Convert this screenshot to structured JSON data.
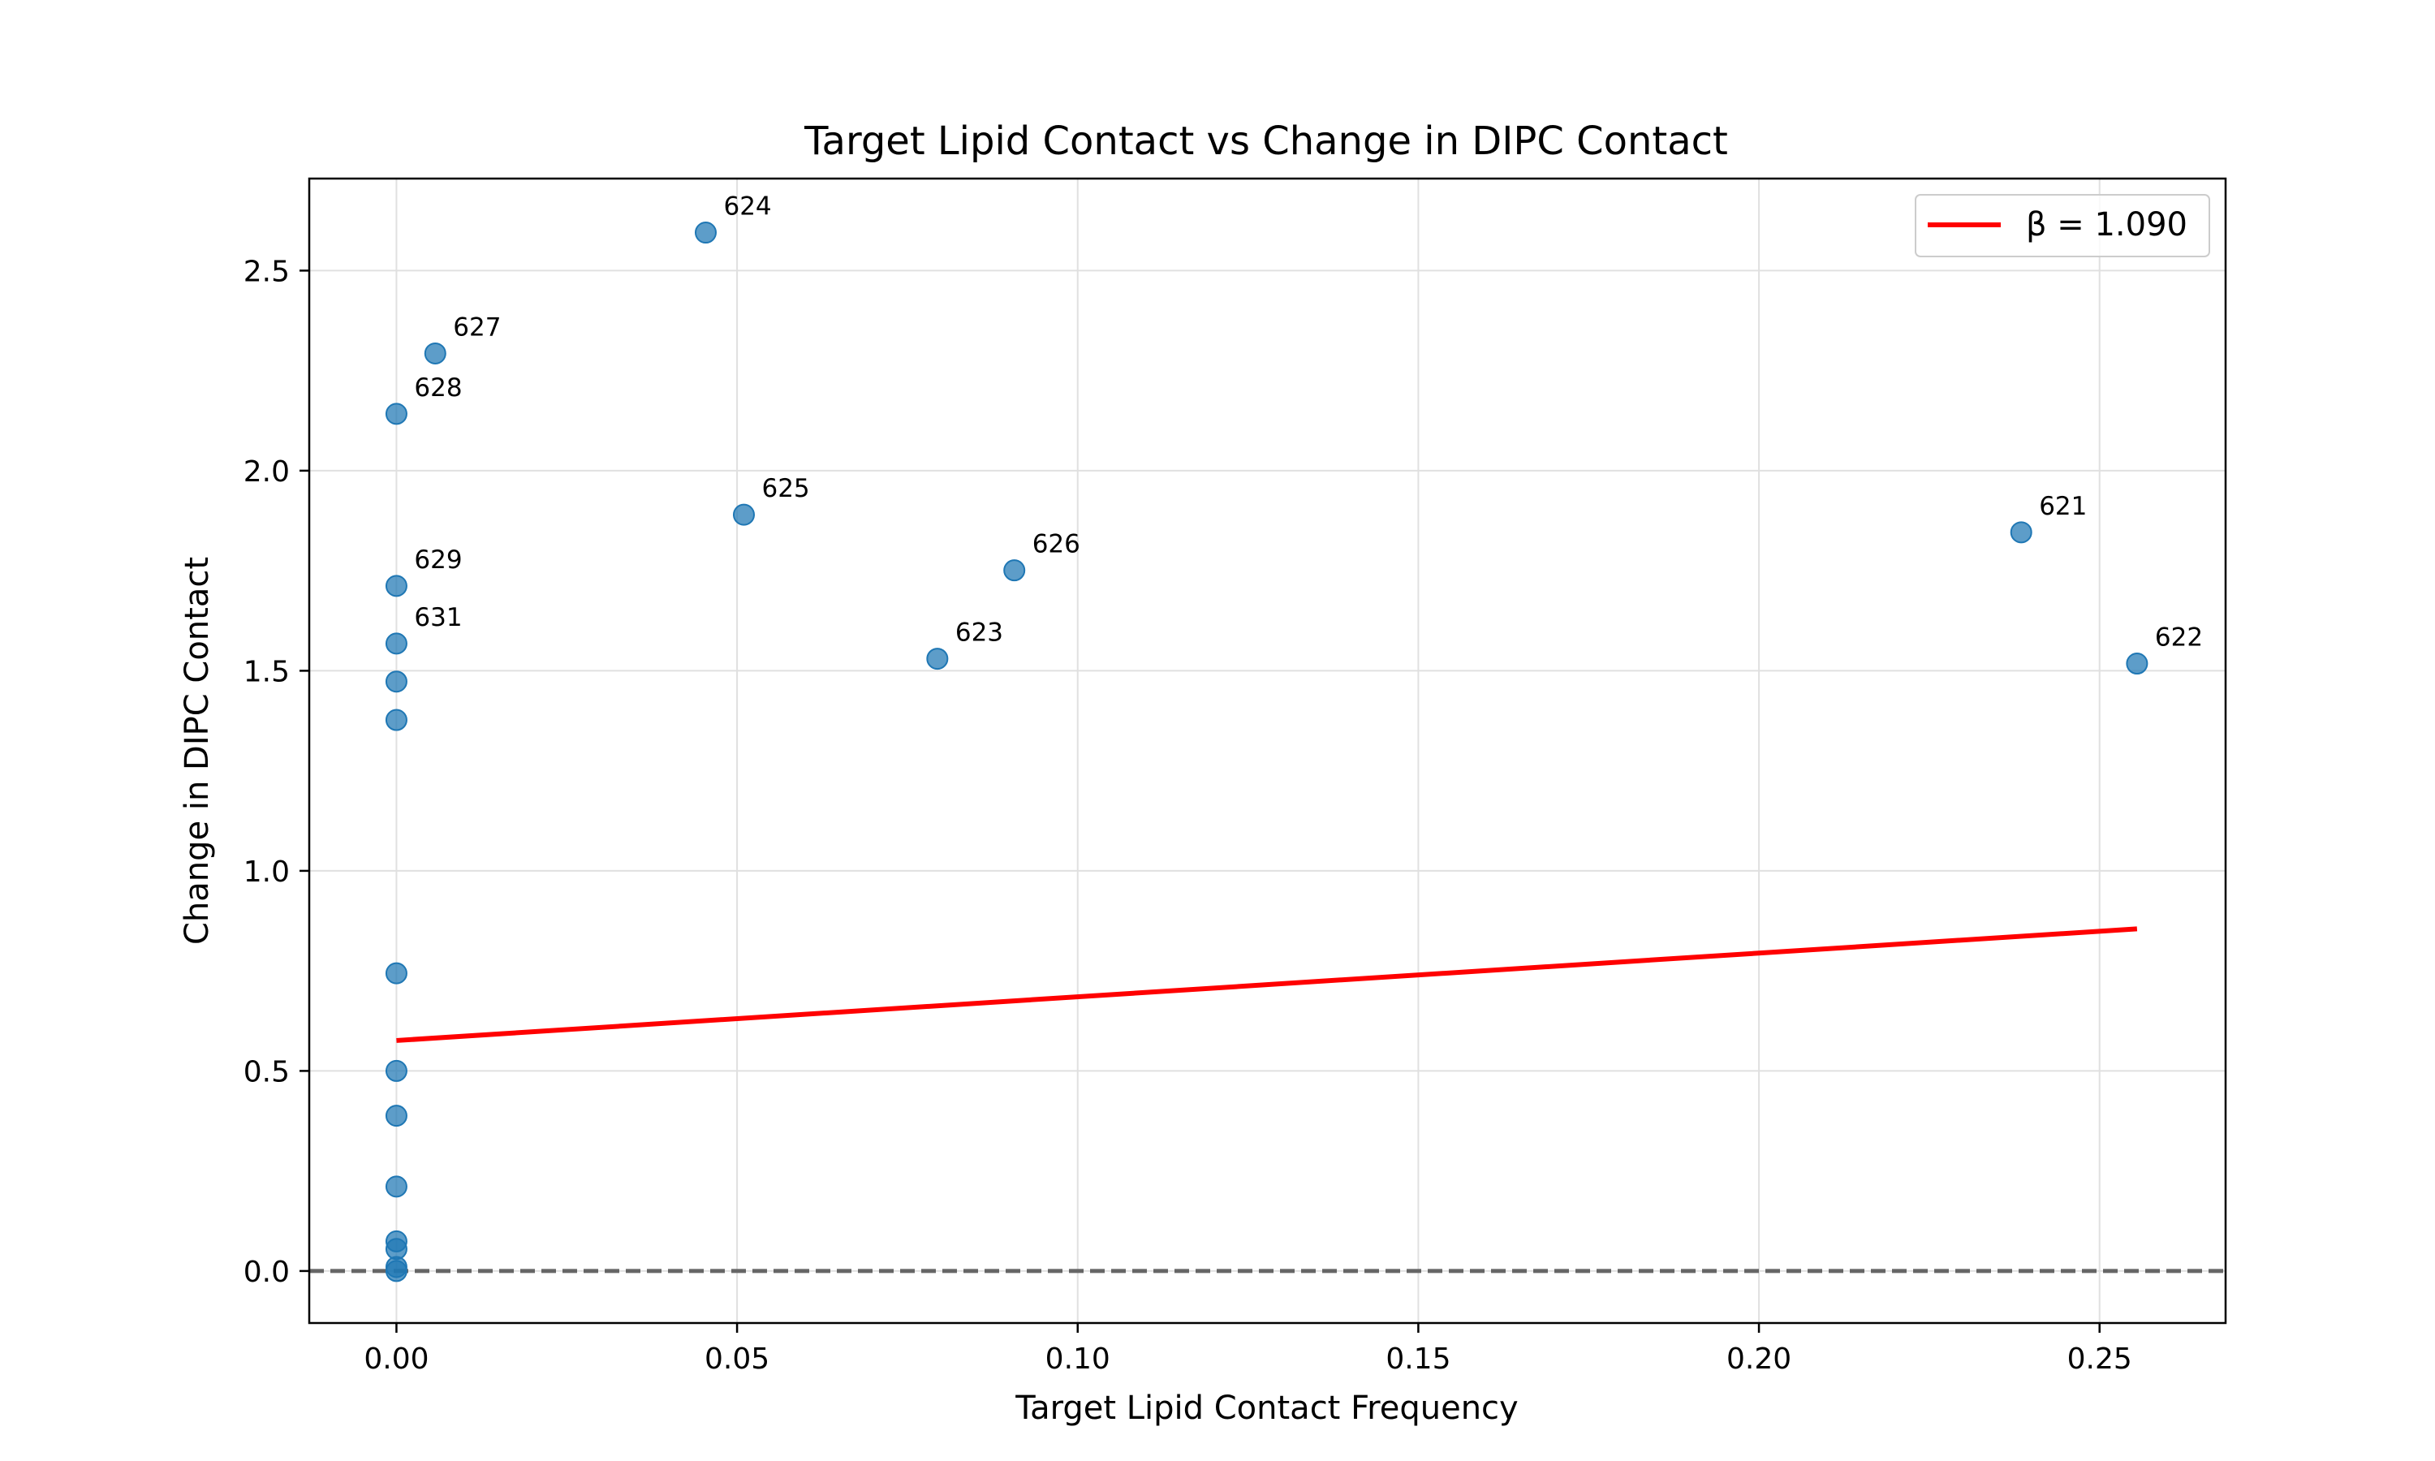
{
  "chart_data": {
    "type": "scatter",
    "title": "Target Lipid Contact vs Change in DIPC Contact",
    "xlabel": "Target Lipid Contact Frequency",
    "ylabel": "Change in DIPC Contact",
    "xlim": [
      -0.0128,
      0.2685
    ],
    "ylim": [
      -0.13,
      2.73
    ],
    "xticks": [
      0.0,
      0.05,
      0.1,
      0.15,
      0.2,
      0.25
    ],
    "xtick_labels": [
      "0.00",
      "0.05",
      "0.10",
      "0.15",
      "0.20",
      "0.25"
    ],
    "yticks": [
      0.0,
      0.5,
      1.0,
      1.5,
      2.0,
      2.5
    ],
    "ytick_labels": [
      "0.0",
      "0.5",
      "1.0",
      "1.5",
      "2.0",
      "2.5"
    ],
    "grid": true,
    "point_color": "#1f77b4",
    "points": [
      {
        "x": 0.0454,
        "y": 2.595,
        "label": "624"
      },
      {
        "x": 0.0057,
        "y": 2.293,
        "label": "627"
      },
      {
        "x": 0.0,
        "y": 2.142,
        "label": "628"
      },
      {
        "x": 0.051,
        "y": 1.89,
        "label": "625"
      },
      {
        "x": 0.0907,
        "y": 1.751,
        "label": "626"
      },
      {
        "x": 0.0,
        "y": 1.712,
        "label": "629"
      },
      {
        "x": 0.0,
        "y": 1.568,
        "label": "631"
      },
      {
        "x": 0.0794,
        "y": 1.53,
        "label": "623"
      },
      {
        "x": 0.2385,
        "y": 1.846,
        "label": "621"
      },
      {
        "x": 0.2555,
        "y": 1.518,
        "label": "622"
      },
      {
        "x": 0.0,
        "y": 1.473,
        "label": ""
      },
      {
        "x": 0.0,
        "y": 1.377,
        "label": ""
      },
      {
        "x": 0.0,
        "y": 0.744,
        "label": ""
      },
      {
        "x": 0.0,
        "y": 0.5,
        "label": ""
      },
      {
        "x": 0.0,
        "y": 0.388,
        "label": ""
      },
      {
        "x": 0.0,
        "y": 0.211,
        "label": ""
      },
      {
        "x": 0.0,
        "y": 0.074,
        "label": ""
      },
      {
        "x": 0.0,
        "y": 0.055,
        "label": ""
      },
      {
        "x": 0.0,
        "y": 0.01,
        "label": ""
      },
      {
        "x": 0.0,
        "y": 0.0,
        "label": ""
      }
    ],
    "fit_line": {
      "legend_label": "β = 1.090",
      "color": "#ff0000",
      "x": [
        0.0,
        0.2555
      ],
      "y": [
        0.576,
        0.855
      ]
    },
    "reference_line": {
      "y": 0.0,
      "style": "dashed",
      "color": "#666666"
    },
    "legend_position": "top-right"
  }
}
